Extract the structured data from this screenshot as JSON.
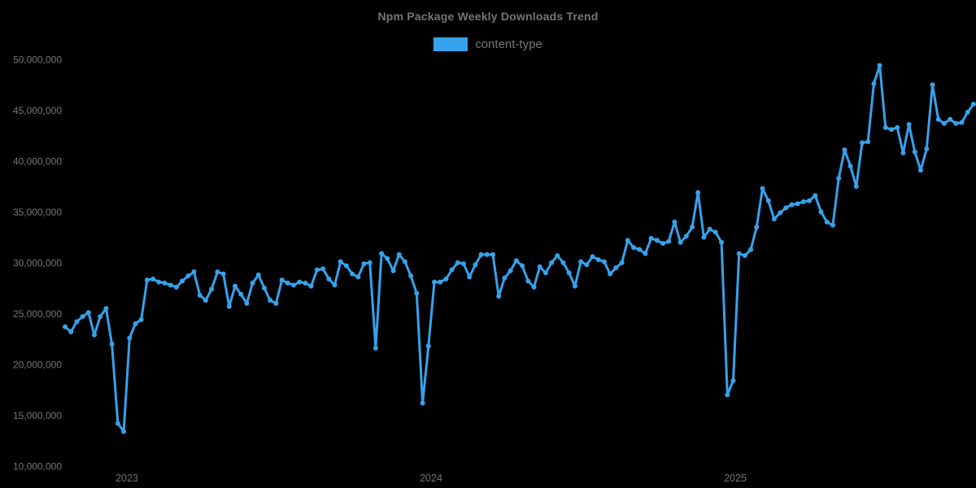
{
  "title": "Npm Package Weekly Downloads Trend",
  "legend": {
    "label": "content-type",
    "swatch_color": "#36A2EB"
  },
  "colors": {
    "background": "#000000",
    "text": "#757575",
    "series": "#36A2EB"
  },
  "chart_data": {
    "type": "line",
    "title": "Npm Package Weekly Downloads Trend",
    "legend_position": "top",
    "grid": false,
    "background": "#000000",
    "x_axis": {
      "cadence": "weekly",
      "num_points": 156,
      "tick_labels": [
        "2023",
        "2024",
        "2025"
      ]
    },
    "x_ticks": [
      {
        "label": "2023",
        "week_index": 10.55
      },
      {
        "label": "2024",
        "week_index": 62.45
      },
      {
        "label": "2025",
        "week_index": 114.35
      }
    ],
    "y_axis": {
      "min": 10000000,
      "max": 50000000,
      "tick_step": 5000000,
      "tick_labels": [
        "50,000,000",
        "45,000,000",
        "40,000,000",
        "35,000,000",
        "30,000,000",
        "25,000,000",
        "20,000,000",
        "15,000,000",
        "10,000,000"
      ]
    },
    "series": [
      {
        "name": "content-type",
        "color": "#36A2EB",
        "unit": "weekly downloads, millions",
        "values_millions": [
          23.7,
          23.2,
          24.2,
          24.7,
          25.1,
          22.9,
          24.7,
          25.5,
          22.0,
          14.2,
          13.4,
          22.6,
          24.0,
          24.4,
          28.3,
          28.4,
          28.1,
          28.0,
          27.8,
          27.6,
          28.2,
          28.7,
          29.1,
          26.8,
          26.3,
          27.4,
          29.1,
          28.9,
          25.7,
          27.7,
          26.9,
          26.0,
          28.0,
          28.8,
          27.5,
          26.3,
          26.0,
          28.3,
          28.0,
          27.8,
          28.1,
          28.0,
          27.7,
          29.3,
          29.4,
          28.4,
          27.8,
          30.1,
          29.7,
          28.9,
          28.6,
          29.9,
          30.0,
          21.6,
          30.9,
          30.4,
          29.2,
          30.8,
          30.1,
          28.7,
          27.0,
          16.2,
          21.8,
          28.1,
          28.1,
          28.4,
          29.3,
          30.0,
          29.9,
          28.6,
          29.8,
          30.8,
          30.8,
          30.8,
          26.7,
          28.5,
          29.2,
          30.2,
          29.7,
          28.2,
          27.6,
          29.6,
          29.0,
          30.0,
          30.7,
          30.0,
          29.0,
          27.7,
          30.1,
          29.8,
          30.6,
          30.3,
          30.1,
          28.9,
          29.5,
          30.0,
          32.2,
          31.5,
          31.3,
          30.9,
          32.4,
          32.2,
          31.9,
          32.1,
          34.0,
          32.0,
          32.6,
          33.5,
          36.9,
          32.5,
          33.3,
          33.0,
          32.0,
          17.0,
          18.4,
          30.9,
          30.7,
          31.3,
          33.5,
          37.3,
          36.1,
          34.3,
          34.9,
          35.4,
          35.7,
          35.8,
          36.0,
          36.1,
          36.6,
          35.0,
          34.0,
          33.7,
          38.3,
          41.1,
          39.5,
          37.5,
          41.8,
          41.9,
          47.6,
          49.4,
          43.3,
          43.1,
          43.3,
          40.8,
          43.6,
          40.9,
          39.1,
          41.2,
          47.5,
          44.1,
          43.7,
          44.1,
          43.7,
          43.8,
          44.8,
          45.6
        ]
      }
    ]
  }
}
